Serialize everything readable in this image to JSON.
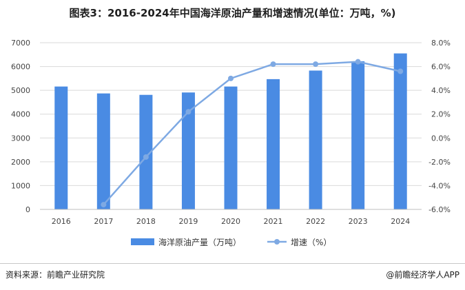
{
  "title": "图表3：2016-2024年中国海洋原油产量和增速情况(单位：万吨，%)",
  "source": "资料来源：前瞻产业研究院",
  "brand": "@前瞻经济学人APP",
  "colors": {
    "bar": "#4a8be3",
    "line": "#7ea9e3",
    "grid": "#d9d9d9",
    "axis": "#bfbfbf"
  },
  "chart_data": {
    "type": "bar",
    "categories": [
      "2016",
      "2017",
      "2018",
      "2019",
      "2020",
      "2021",
      "2022",
      "2023",
      "2024"
    ],
    "series": [
      {
        "name": "海洋原油产量（万吨）",
        "type": "bar",
        "axis": "left",
        "values": [
          5160,
          4870,
          4810,
          4910,
          5160,
          5470,
          5830,
          6220,
          6550
        ]
      },
      {
        "name": "增速（%）",
        "type": "line",
        "axis": "right",
        "values": [
          null,
          -5.6,
          -1.6,
          2.2,
          5.0,
          6.2,
          6.2,
          6.4,
          5.6
        ]
      }
    ],
    "left_axis": {
      "min": 0,
      "max": 7000,
      "step": 1000,
      "tick_labels": [
        "0",
        "1000",
        "2000",
        "3000",
        "4000",
        "5000",
        "6000",
        "7000"
      ]
    },
    "right_axis": {
      "min": -6,
      "max": 8,
      "step": 2,
      "tick_labels": [
        "-6.0%",
        "-4.0%",
        "-2.0%",
        "0.0%",
        "2.0%",
        "4.0%",
        "6.0%",
        "8.0%"
      ]
    },
    "grid": true,
    "legend_position": "bottom"
  }
}
